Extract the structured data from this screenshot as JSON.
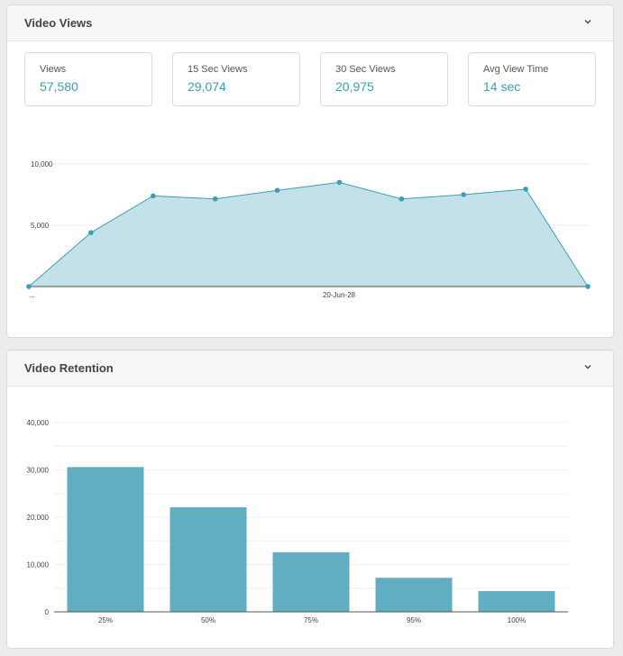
{
  "video_views": {
    "title": "Video Views",
    "stats": [
      {
        "label": "Views",
        "value": "57,580"
      },
      {
        "label": "15 Sec Views",
        "value": "29,074"
      },
      {
        "label": "30 Sec Views",
        "value": "20,975"
      },
      {
        "label": "Avg View Time",
        "value": "14 sec"
      }
    ]
  },
  "video_retention": {
    "title": "Video Retention"
  },
  "colors": {
    "accent": "#3a9fb5",
    "area_fill": "#c3e1e8",
    "bar": "#61adc2"
  },
  "chart_data": [
    {
      "type": "area",
      "y_ticks": [
        "10,000",
        "5,000"
      ],
      "x_ticks": [
        "...",
        "20-Jun-28"
      ],
      "ylim": [
        0,
        10000
      ],
      "values": [
        0,
        4400,
        7400,
        7150,
        7850,
        8500,
        7150,
        7500,
        7950,
        0
      ],
      "grid": true
    },
    {
      "type": "bar",
      "categories": [
        "25%",
        "50%",
        "75%",
        "95%",
        "100%"
      ],
      "values": [
        30600,
        22100,
        12600,
        7200,
        4400
      ],
      "y_ticks": [
        "40,000",
        "30,000",
        "20,000",
        "10,000",
        "0"
      ],
      "ylim": [
        0,
        40000
      ],
      "grid": true
    }
  ]
}
